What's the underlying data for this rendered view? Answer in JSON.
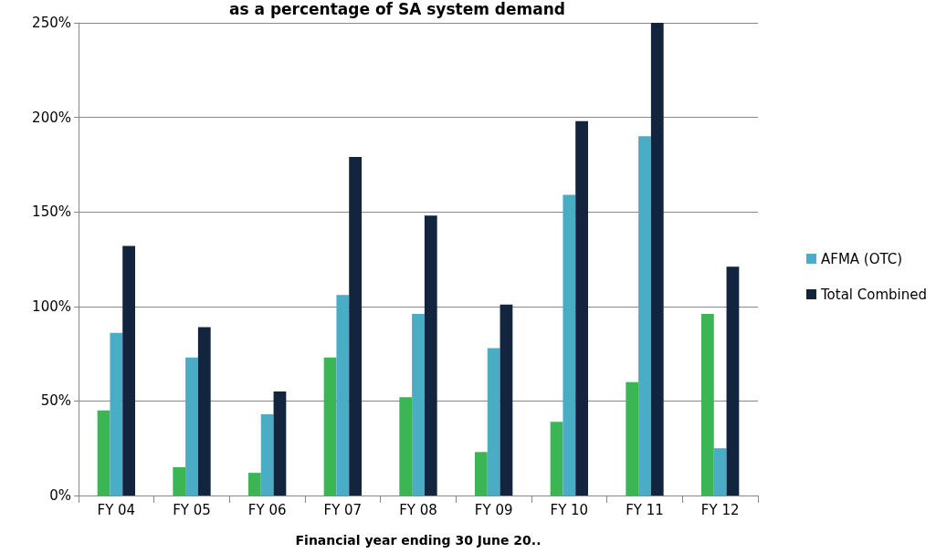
{
  "chart_data": {
    "type": "bar",
    "title": "as a percentage of SA system demand",
    "xlabel": "Financial year ending 30 June 20..",
    "categories": [
      "FY 04",
      "FY 05",
      "FY 06",
      "FY 07",
      "FY 08",
      "FY 09",
      "FY 10",
      "FY 11",
      "FY 12"
    ],
    "series": [
      {
        "color": "#3cb554",
        "values": [
          45,
          15,
          12,
          73,
          52,
          23,
          39,
          60,
          96
        ]
      },
      {
        "name": "AFMA (OTC)",
        "color": "#4bacc6",
        "values": [
          86,
          73,
          43,
          106,
          96,
          78,
          159,
          190,
          25
        ]
      },
      {
        "name": "Total Combined",
        "color": "#13243f",
        "values": [
          132,
          89,
          55,
          179,
          148,
          101,
          198,
          250,
          121
        ]
      }
    ],
    "ylim": [
      0,
      250
    ],
    "yticks": [
      {
        "value": 0,
        "label": "0%"
      },
      {
        "value": 50,
        "label": "50%"
      },
      {
        "value": 100,
        "label": "100%"
      },
      {
        "value": 150,
        "label": "150%"
      },
      {
        "value": 200,
        "label": "200%"
      },
      {
        "value": 250,
        "label": "250%"
      }
    ],
    "grid": "y",
    "legend": "right"
  }
}
